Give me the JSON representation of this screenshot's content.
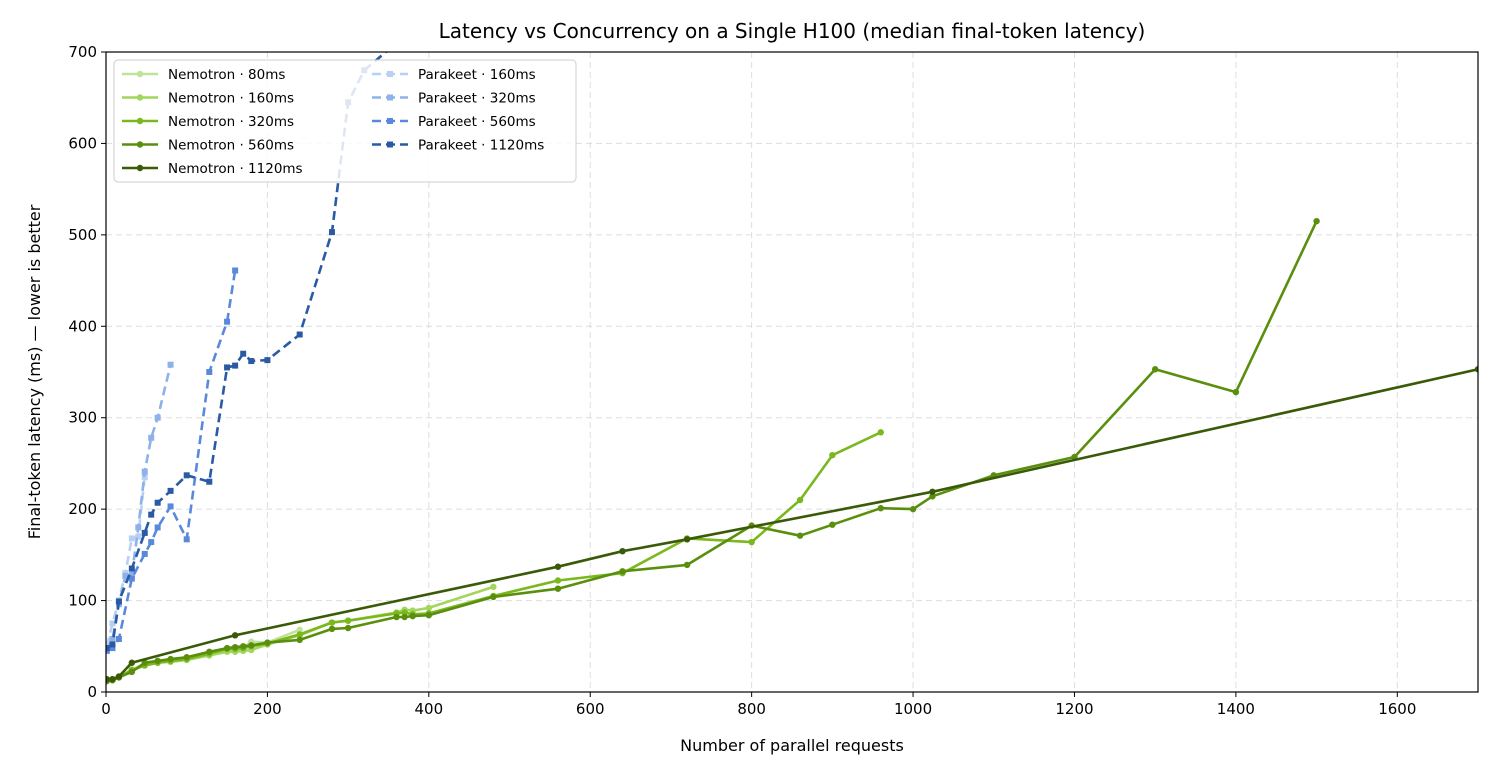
{
  "chart_data": {
    "type": "line",
    "title": "Latency vs Concurrency on a Single H100 (median final-token latency)",
    "xlabel": "Number of parallel requests",
    "ylabel": "Final-token latency (ms)  —  lower is better",
    "xlim": [
      0,
      1700
    ],
    "ylim": [
      0,
      700
    ],
    "xticks": [
      0,
      200,
      400,
      600,
      800,
      1000,
      1200,
      1400,
      1600
    ],
    "yticks": [
      0,
      100,
      200,
      300,
      400,
      500,
      600,
      700
    ],
    "grid": true,
    "legend_position": "top-left",
    "legend_columns": 2,
    "series": [
      {
        "name": "Nemotron · 80ms",
        "color": "#bfe39a",
        "dash": "solid",
        "marker": "circle",
        "x": [
          1,
          8,
          16,
          32,
          48,
          64,
          80,
          100,
          128,
          150,
          160,
          170,
          180,
          200,
          240
        ],
        "y": [
          12,
          14,
          16,
          25,
          30,
          33,
          35,
          37,
          44,
          46,
          45,
          48,
          55,
          54,
          68
        ]
      },
      {
        "name": "Nemotron · 160ms",
        "color": "#a3d65c",
        "dash": "solid",
        "marker": "circle",
        "x": [
          1,
          8,
          16,
          32,
          48,
          64,
          80,
          100,
          128,
          150,
          160,
          170,
          180,
          200,
          240,
          280,
          300,
          360,
          370,
          380,
          400,
          480
        ],
        "y": [
          12,
          13,
          16,
          24,
          29,
          32,
          33,
          35,
          40,
          44,
          44,
          45,
          46,
          52,
          62,
          76,
          78,
          87,
          90,
          89,
          92,
          115
        ]
      },
      {
        "name": "Nemotron · 320ms",
        "color": "#7ab81e",
        "dash": "solid",
        "marker": "circle",
        "x": [
          1,
          8,
          16,
          32,
          48,
          64,
          80,
          100,
          128,
          150,
          160,
          170,
          180,
          200,
          240,
          280,
          300,
          360,
          370,
          380,
          400,
          480,
          560,
          640,
          720,
          800,
          860,
          900,
          960
        ],
        "y": [
          12,
          13,
          16,
          24,
          29,
          32,
          34,
          36,
          42,
          47,
          47,
          48,
          50,
          53,
          63,
          76,
          78,
          86,
          87,
          85,
          86,
          105,
          122,
          130,
          168,
          164,
          210,
          259,
          284
        ]
      },
      {
        "name": "Nemotron · 560ms",
        "color": "#5a8f0e",
        "dash": "solid",
        "marker": "circle",
        "x": [
          1,
          8,
          16,
          32,
          48,
          64,
          80,
          100,
          128,
          150,
          160,
          170,
          180,
          200,
          240,
          280,
          300,
          360,
          370,
          380,
          400,
          480,
          560,
          640,
          720,
          800,
          860,
          900,
          960,
          1000,
          1024,
          1100,
          1200,
          1300,
          1400,
          1500
        ],
        "y": [
          12,
          13,
          16,
          22,
          32,
          34,
          36,
          38,
          44,
          48,
          49,
          50,
          51,
          54,
          57,
          69,
          70,
          82,
          82,
          83,
          84,
          104,
          113,
          132,
          139,
          182,
          171,
          183,
          201,
          200,
          214,
          237,
          257,
          353,
          328,
          515
        ]
      },
      {
        "name": "Nemotron · 1120ms",
        "color": "#3a5a08",
        "dash": "solid",
        "marker": "circle",
        "x": [
          1,
          8,
          16,
          32,
          160,
          560,
          640,
          720,
          1024,
          1700
        ],
        "y": [
          14,
          14,
          17,
          32,
          62,
          137,
          154,
          167,
          219,
          353
        ]
      },
      {
        "name": "Parakeet · 160ms",
        "color": "#b8d0f4",
        "dash": "dashed",
        "marker": "square",
        "x": [
          1,
          8,
          16,
          24,
          32,
          40,
          48
        ],
        "y": [
          50,
          75,
          100,
          130,
          168,
          170,
          235
        ]
      },
      {
        "name": "Parakeet · 320ms",
        "color": "#8db2ea",
        "dash": "dashed",
        "marker": "square",
        "x": [
          1,
          8,
          16,
          24,
          32,
          40,
          48,
          56,
          64,
          80
        ],
        "y": [
          46,
          58,
          96,
          127,
          128,
          180,
          241,
          278,
          300,
          358
        ]
      },
      {
        "name": "Parakeet · 560ms",
        "color": "#5a89dc",
        "dash": "dashed",
        "marker": "square",
        "x": [
          1,
          8,
          16,
          32,
          48,
          56,
          64,
          80,
          100,
          128,
          150,
          160
        ],
        "y": [
          45,
          48,
          58,
          124,
          151,
          164,
          180,
          203,
          167,
          350,
          405,
          461
        ]
      },
      {
        "name": "Parakeet · 1120ms",
        "color": "#2b5aa5",
        "dash": "dashed",
        "marker": "square",
        "x": [
          1,
          8,
          16,
          32,
          48,
          56,
          64,
          80,
          100,
          128,
          150,
          160,
          170,
          180,
          200,
          240,
          280,
          300,
          320,
          360
        ],
        "y": [
          48,
          52,
          99,
          135,
          174,
          194,
          207,
          220,
          237,
          230,
          355,
          357,
          370,
          362,
          363,
          391,
          503,
          645,
          680,
          710
        ]
      }
    ]
  }
}
